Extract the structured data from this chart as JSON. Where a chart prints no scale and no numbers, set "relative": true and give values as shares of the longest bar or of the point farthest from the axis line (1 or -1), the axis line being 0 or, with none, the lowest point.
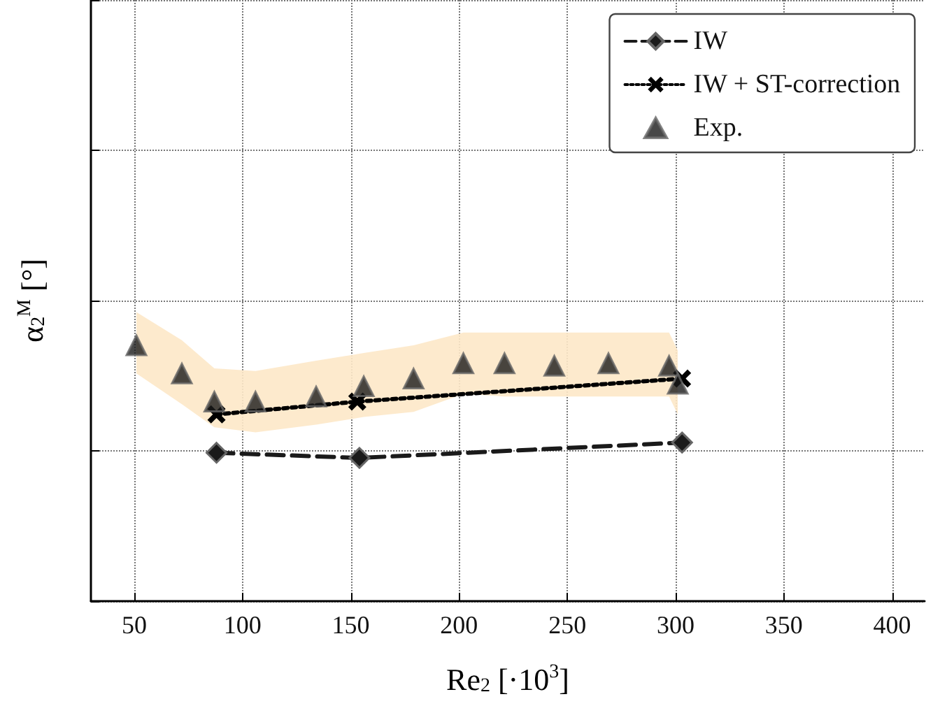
{
  "chart_data": {
    "type": "line",
    "xlabel": "Re$_{2}$ [·10$^{3}$]",
    "ylabel": "α$_{2}$$^{M}$ [°]",
    "relative": true,
    "xlim": [
      30,
      415
    ],
    "xticks": [
      50,
      100,
      150,
      200,
      250,
      300,
      350,
      400
    ],
    "grid": true,
    "legend": "top right",
    "tick_labels": "x",
    "series": [
      {
        "name": "IW",
        "color": "#1a1a1a",
        "marker": "diamond",
        "line_style": "dashed",
        "x": [
          88,
          154,
          303
        ],
        "values": [
          0.58,
          0.56,
          0.62
        ]
      },
      {
        "name": "IW + ST-correction",
        "type": "line",
        "color": "#000000",
        "marker": "cross",
        "line_style": "dotted",
        "x": [
          88,
          153,
          303
        ],
        "values": [
          0.73,
          0.78,
          0.87
        ]
      },
      {
        "name": "Exp.",
        "type": "scatter",
        "color": "#1a1a1a",
        "marker": "triangle",
        "x": [
          51,
          72,
          87,
          106,
          134,
          156,
          179,
          202,
          221,
          244,
          269,
          297,
          301
        ],
        "values": [
          1.0,
          0.89,
          0.78,
          0.78,
          0.8,
          0.84,
          0.87,
          0.93,
          0.93,
          0.92,
          0.93,
          0.92,
          0.85
        ],
        "upper": [
          1.13,
          1.02,
          0.91,
          0.9,
          0.94,
          0.97,
          1.0,
          1.05,
          1.05,
          1.05,
          1.05,
          1.05,
          0.98
        ],
        "lower": [
          0.89,
          0.77,
          0.68,
          0.66,
          0.69,
          0.72,
          0.74,
          0.81,
          0.8,
          0.8,
          0.8,
          0.8,
          0.73
        ]
      }
    ]
  }
}
